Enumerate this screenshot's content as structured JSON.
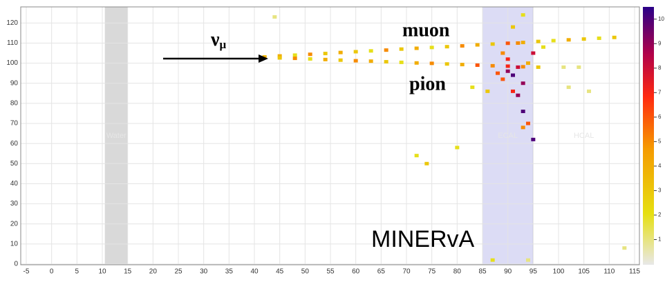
{
  "chart_data": {
    "type": "scatter",
    "xticks": [
      -5,
      0,
      5,
      10,
      15,
      20,
      25,
      30,
      35,
      40,
      45,
      50,
      55,
      60,
      65,
      70,
      75,
      80,
      85,
      90,
      95,
      100,
      105,
      110,
      115
    ],
    "ylim": [
      0,
      128
    ],
    "yticks": [
      0,
      10,
      20,
      30,
      40,
      50,
      60,
      70,
      80,
      90,
      100,
      110,
      120
    ],
    "grid": true,
    "regions": [
      {
        "label": "Water",
        "x": [
          10.5,
          15
        ],
        "color": "#d9d9d9"
      },
      {
        "label": "ECAL",
        "x": [
          85,
          95
        ],
        "color": "#dcdcf5"
      },
      {
        "label": "HCAL",
        "x": [
          95,
          115
        ],
        "color": "#ffffff"
      }
    ],
    "clim": [
      0,
      10.5
    ],
    "cticks": [
      1,
      2,
      3,
      4,
      5,
      6,
      7,
      8,
      9,
      10
    ],
    "annotations": {
      "muon": "muon",
      "pion": "pion",
      "neutrino": "ν",
      "neutrino_sub": "μ",
      "detector": "MINERvA"
    },
    "points": {
      "x": [
        42,
        45,
        48,
        51,
        54,
        57,
        60,
        63,
        66,
        69,
        72,
        75,
        78,
        81,
        84,
        87,
        90,
        93,
        96,
        99,
        102,
        105,
        108,
        111,
        42,
        45,
        48,
        51,
        54,
        57,
        60,
        63,
        66,
        69,
        72,
        75,
        78,
        81,
        84,
        87,
        90,
        93,
        90,
        91,
        92,
        89,
        93,
        91,
        92,
        93,
        94,
        93,
        95,
        88,
        94,
        90,
        92,
        91,
        93,
        89,
        86,
        95,
        96,
        83,
        72,
        74,
        80,
        101,
        104,
        102,
        106,
        44,
        113,
        87,
        94,
        97
      ],
      "y": [
        103.1,
        103.6,
        104.0,
        104.4,
        104.8,
        105.3,
        105.7,
        106.1,
        106.5,
        107.0,
        107.4,
        107.8,
        108.2,
        108.6,
        109.1,
        109.5,
        109.9,
        110.3,
        110.8,
        111.2,
        111.6,
        112.0,
        112.4,
        112.8,
        102.9,
        102.6,
        102.4,
        102.1,
        101.8,
        101.5,
        101.2,
        101.0,
        100.7,
        100.4,
        100.1,
        99.9,
        99.6,
        99.3,
        99.0,
        98.7,
        98.5,
        98.2,
        96,
        94,
        98,
        92,
        90,
        86,
        84,
        76,
        70,
        68,
        62,
        95,
        100,
        102,
        110,
        118,
        124,
        105,
        86,
        105,
        98,
        88,
        54,
        50,
        58,
        98,
        98,
        88,
        86,
        123,
        8,
        2,
        2,
        108
      ],
      "values": [
        3,
        4,
        2,
        5,
        3,
        4,
        3,
        2,
        5,
        3,
        4,
        2,
        3,
        5,
        4,
        3,
        6,
        4,
        3,
        2,
        4,
        3,
        2,
        3,
        4,
        3,
        5,
        2,
        4,
        3,
        5,
        4,
        3,
        2,
        4,
        5,
        3,
        4,
        6,
        5,
        7,
        5,
        9,
        10,
        8,
        6,
        9,
        7,
        9,
        10,
        6,
        5,
        10,
        6,
        4,
        7,
        5,
        3,
        2,
        5,
        3,
        8,
        3,
        2,
        2,
        3,
        2,
        1,
        1,
        1,
        1,
        1,
        1,
        2,
        1,
        2
      ]
    }
  }
}
